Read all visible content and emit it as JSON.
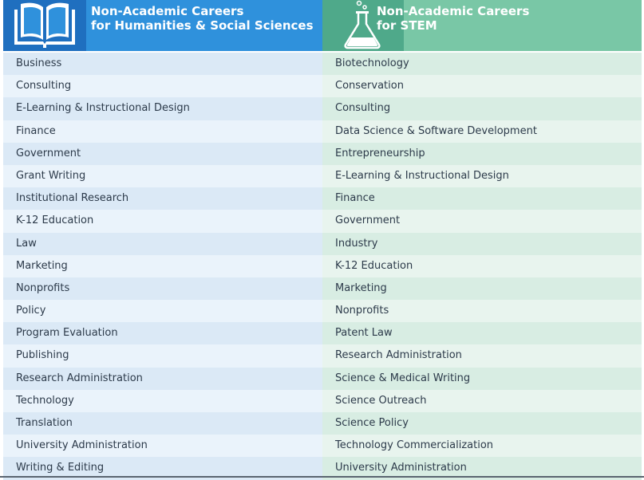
{
  "header": {
    "left": {
      "line1": "Non-Academic Careers",
      "line2": "for Humanities & Social Sciences"
    },
    "right": {
      "line1": "Non-Academic Careers",
      "line2": "for STEM"
    },
    "colors": {
      "left_bg": "#2f91dc",
      "left_icon_bg": "#1f6fbf",
      "right_bg": "#79c7a6",
      "right_icon_bg": "#4fa98a"
    }
  },
  "humanities": [
    "Business",
    "Consulting",
    "E-Learning & Instructional Design",
    "Finance",
    "Government",
    "Grant Writing",
    "Institutional Research",
    "K-12 Education",
    "Law",
    "Marketing",
    "Nonprofits",
    "Policy",
    "Program Evaluation",
    "Publishing",
    "Research Administration",
    "Technology",
    "Translation",
    "University Administration",
    "Writing & Editing"
  ],
  "stem": [
    "Biotechnology",
    "Conservation",
    "Consulting",
    "Data Science & Software Development",
    "Entrepreneurship",
    "E-Learning & Instructional Design",
    "Finance",
    "Government",
    "Industry",
    "K-12 Education",
    "Marketing",
    "Nonprofits",
    "Patent Law",
    "Research Administration",
    "Science & Medical Writing",
    "Science Outreach",
    "Science Policy",
    "Technology Commercialization",
    "University Administration"
  ]
}
